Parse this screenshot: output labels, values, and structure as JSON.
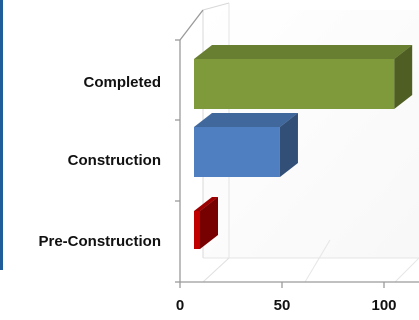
{
  "chart_data": {
    "type": "bar",
    "orientation": "horizontal",
    "style": "3d",
    "categories": [
      "Completed",
      "Construction",
      "Pre-Construction"
    ],
    "values": [
      105,
      49,
      9
    ],
    "colors": [
      "#7f9a3a",
      "#4f7fc0",
      "#c00000"
    ],
    "xlim": [
      0,
      110
    ],
    "xticks": [
      0,
      50,
      100
    ],
    "title": "",
    "xlabel": "",
    "ylabel": "",
    "grid": false,
    "legend": "none"
  }
}
